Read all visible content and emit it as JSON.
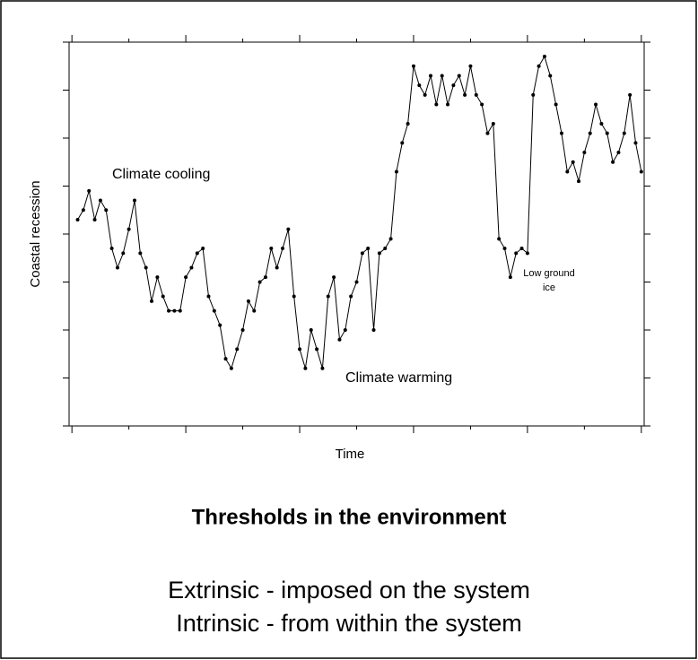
{
  "chart_data": {
    "type": "line",
    "xlabel": "Time",
    "ylabel": "Coastal recession",
    "annotations": [
      "Climate cooling",
      "Climate warming",
      "Low ground",
      "ice"
    ],
    "x": [
      1,
      2,
      3,
      4,
      5,
      6,
      7,
      8,
      9,
      10,
      11,
      12,
      13,
      14,
      15,
      16,
      17,
      18,
      19,
      20,
      21,
      22,
      23,
      24,
      25,
      26,
      27,
      28,
      29,
      30,
      31,
      32,
      33,
      34,
      35,
      36,
      37,
      38,
      39,
      40,
      41,
      42,
      43,
      44,
      45,
      46,
      47,
      48,
      49,
      50,
      51,
      52,
      53,
      54,
      55,
      56,
      57,
      58,
      59,
      60,
      61,
      62,
      63,
      64,
      65,
      66,
      67,
      68,
      69,
      70,
      71,
      72,
      73,
      74,
      75,
      76,
      77,
      78,
      79,
      80,
      81,
      82,
      83,
      84,
      85,
      86,
      87,
      88,
      89,
      90,
      91,
      92,
      93,
      94,
      95,
      96,
      97,
      98,
      99,
      100
    ],
    "values": [
      4.3,
      4.5,
      4.9,
      4.3,
      4.7,
      4.5,
      3.7,
      3.3,
      3.6,
      4.1,
      4.7,
      3.6,
      3.3,
      2.6,
      3.1,
      2.7,
      2.4,
      2.4,
      2.4,
      3.1,
      3.3,
      3.6,
      3.7,
      2.7,
      2.4,
      2.1,
      1.4,
      1.2,
      1.6,
      2.0,
      2.6,
      2.4,
      3.0,
      3.1,
      3.7,
      3.3,
      3.7,
      4.1,
      2.7,
      1.6,
      1.2,
      2.0,
      1.6,
      1.2,
      2.7,
      3.1,
      1.8,
      2.0,
      2.7,
      3.0,
      3.6,
      3.7,
      2.0,
      3.6,
      3.7,
      3.9,
      5.3,
      5.9,
      6.3,
      7.5,
      7.1,
      6.9,
      7.3,
      6.7,
      7.3,
      6.7,
      7.1,
      7.3,
      6.9,
      7.5,
      6.9,
      6.7,
      6.1,
      6.3,
      3.9,
      3.7,
      3.1,
      3.6,
      3.7,
      3.6,
      6.9,
      7.5,
      7.7,
      7.3,
      6.7,
      6.1,
      5.3,
      5.5,
      5.1,
      5.7,
      6.1,
      6.7,
      6.3,
      6.1,
      5.5,
      5.7,
      6.1,
      6.9,
      5.9,
      5.3
    ],
    "color": "#000000",
    "xlim": [
      -0.5,
      100.5
    ],
    "xticks": [
      0,
      10,
      20,
      30,
      40,
      50,
      60,
      70,
      80,
      90,
      100
    ],
    "ylim": [
      0,
      8
    ],
    "yticks": [
      0,
      1,
      2,
      3,
      4,
      5,
      6,
      7,
      8
    ]
  },
  "slide": {
    "heading": "Thresholds in the environment",
    "lines": [
      "Extrinsic - imposed on the system",
      "Intrinsic - from within the system"
    ]
  }
}
